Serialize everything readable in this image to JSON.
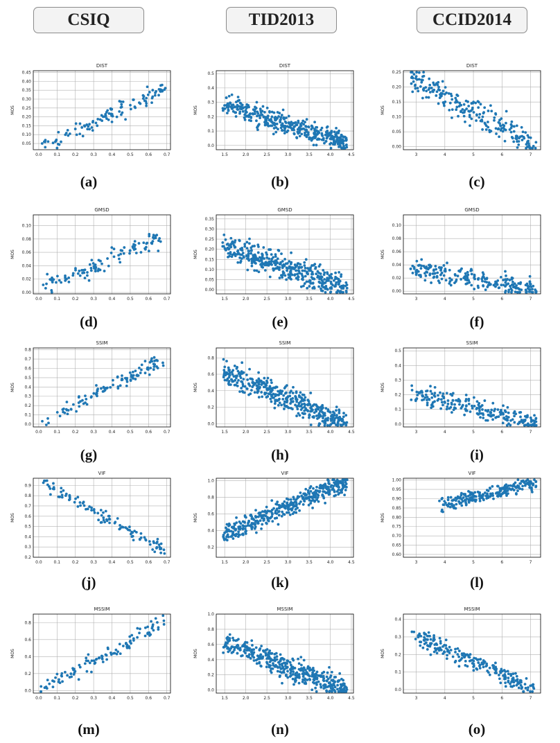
{
  "headers": [
    "CSIQ",
    "TID2013",
    "CCID2014"
  ],
  "colors": {
    "point": "#1f77b4",
    "grid": "#b0b0b0",
    "axis": "#000000"
  },
  "chart_data": [
    {
      "type": "scatter",
      "dataset": "CSIQ",
      "label": "(a)",
      "title": "DIST",
      "xlabel": "",
      "ylabel": "MOS",
      "xlim": [
        -0.03,
        0.72
      ],
      "ylim": [
        0.015,
        0.46
      ],
      "xticks": [
        0.0,
        0.1,
        0.2,
        0.3,
        0.4,
        0.5,
        0.6,
        0.7
      ],
      "xtick_labels": [
        "0.0",
        "0.1",
        "0.2",
        "0.3",
        "0.4",
        "0.5",
        "0.6",
        "0.7"
      ],
      "yticks": [
        0.05,
        0.1,
        0.15,
        0.2,
        0.25,
        0.3,
        0.35,
        0.4,
        0.45
      ],
      "ytick_labels": [
        "0.05",
        "0.10",
        "0.15",
        "0.20",
        "0.25",
        "0.30",
        "0.35",
        "0.40",
        "0.45"
      ],
      "trend": {
        "x": [
          0.01,
          0.7
        ],
        "y": [
          0.03,
          0.36
        ],
        "spread": 0.045,
        "x_range": [
          0.01,
          0.7
        ]
      },
      "n_points": 110
    },
    {
      "type": "scatter",
      "dataset": "TID2013",
      "label": "(b)",
      "title": "DIST",
      "xlabel": "",
      "ylabel": "MOS",
      "xlim": [
        1.3,
        4.55
      ],
      "ylim": [
        -0.03,
        0.52
      ],
      "xticks": [
        1.5,
        2.0,
        2.5,
        3.0,
        3.5,
        4.0,
        4.5
      ],
      "xtick_labels": [
        "1.5",
        "2.0",
        "2.5",
        "3.0",
        "3.5",
        "4.0",
        "4.5"
      ],
      "yticks": [
        0.0,
        0.1,
        0.2,
        0.3,
        0.4,
        0.5
      ],
      "ytick_labels": [
        "0.0",
        "0.1",
        "0.2",
        "0.3",
        "0.4",
        "0.5"
      ],
      "trend": {
        "x": [
          1.45,
          4.4
        ],
        "y": [
          0.28,
          0.02
        ],
        "spread": 0.07,
        "x_range": [
          1.45,
          4.4
        ]
      },
      "n_points": 420
    },
    {
      "type": "scatter",
      "dataset": "CCID2014",
      "label": "(c)",
      "title": "DIST",
      "xlabel": "",
      "ylabel": "MOS",
      "xlim": [
        2.55,
        7.35
      ],
      "ylim": [
        -0.01,
        0.255
      ],
      "xticks": [
        3,
        4,
        5,
        6,
        7
      ],
      "xtick_labels": [
        "3",
        "4",
        "5",
        "6",
        "7"
      ],
      "yticks": [
        0.0,
        0.05,
        0.1,
        0.15,
        0.2,
        0.25
      ],
      "ytick_labels": [
        "0.00",
        "0.05",
        "0.10",
        "0.15",
        "0.20",
        "0.25"
      ],
      "trend": {
        "x": [
          2.8,
          7.2
        ],
        "y": [
          0.23,
          0.0
        ],
        "spread": 0.05,
        "x_range": [
          2.8,
          7.2
        ]
      },
      "n_points": 230
    },
    {
      "type": "scatter",
      "dataset": "CSIQ",
      "label": "(d)",
      "title": "GMSD",
      "xlabel": "",
      "ylabel": "MOS",
      "xlim": [
        -0.03,
        0.72
      ],
      "ylim": [
        -0.002,
        0.116
      ],
      "xticks": [
        0.0,
        0.1,
        0.2,
        0.3,
        0.4,
        0.5,
        0.6,
        0.7
      ],
      "xtick_labels": [
        "0.0",
        "0.1",
        "0.2",
        "0.3",
        "0.4",
        "0.5",
        "0.6",
        "0.7"
      ],
      "yticks": [
        0.0,
        0.02,
        0.04,
        0.06,
        0.08,
        0.1
      ],
      "ytick_labels": [
        "0.00",
        "0.02",
        "0.04",
        "0.06",
        "0.08",
        "0.10"
      ],
      "trend": {
        "x": [
          0.01,
          0.69
        ],
        "y": [
          0.005,
          0.085
        ],
        "spread": 0.015,
        "x_range": [
          0.01,
          0.69
        ]
      },
      "n_points": 110
    },
    {
      "type": "scatter",
      "dataset": "TID2013",
      "label": "(e)",
      "title": "GMSD",
      "xlabel": "",
      "ylabel": "MOS",
      "xlim": [
        1.3,
        4.55
      ],
      "ylim": [
        -0.02,
        0.37
      ],
      "xticks": [
        1.5,
        2.0,
        2.5,
        3.0,
        3.5,
        4.0,
        4.5
      ],
      "xtick_labels": [
        "1.5",
        "2.0",
        "2.5",
        "3.0",
        "3.5",
        "4.0",
        "4.5"
      ],
      "yticks": [
        0.0,
        0.05,
        0.1,
        0.15,
        0.2,
        0.25,
        0.3,
        0.35
      ],
      "ytick_labels": [
        "0.00",
        "0.05",
        "0.10",
        "0.15",
        "0.20",
        "0.25",
        "0.30",
        "0.35"
      ],
      "trend": {
        "x": [
          1.45,
          4.4
        ],
        "y": [
          0.22,
          0.01
        ],
        "spread": 0.06,
        "x_range": [
          1.45,
          4.4
        ]
      },
      "n_points": 420
    },
    {
      "type": "scatter",
      "dataset": "CCID2014",
      "label": "(f)",
      "title": "GMSD",
      "xlabel": "",
      "ylabel": "MOS",
      "xlim": [
        2.55,
        7.35
      ],
      "ylim": [
        -0.004,
        0.116
      ],
      "xticks": [
        3,
        4,
        5,
        6,
        7
      ],
      "xtick_labels": [
        "3",
        "4",
        "5",
        "6",
        "7"
      ],
      "yticks": [
        0.0,
        0.02,
        0.04,
        0.06,
        0.08,
        0.1
      ],
      "ytick_labels": [
        "0.00",
        "0.02",
        "0.04",
        "0.06",
        "0.08",
        "0.10"
      ],
      "trend": {
        "x": [
          2.8,
          7.2
        ],
        "y": [
          0.035,
          0.002
        ],
        "spread": 0.015,
        "x_range": [
          2.8,
          7.2
        ]
      },
      "n_points": 230
    },
    {
      "type": "scatter",
      "dataset": "CSIQ",
      "label": "(g)",
      "title": "SSIM",
      "xlabel": "",
      "ylabel": "MOS",
      "xlim": [
        -0.03,
        0.72
      ],
      "ylim": [
        -0.03,
        0.82
      ],
      "xticks": [
        0.0,
        0.1,
        0.2,
        0.3,
        0.4,
        0.5,
        0.6,
        0.7
      ],
      "xtick_labels": [
        "0.0",
        "0.1",
        "0.2",
        "0.3",
        "0.4",
        "0.5",
        "0.6",
        "0.7"
      ],
      "yticks": [
        0.0,
        0.1,
        0.2,
        0.3,
        0.4,
        0.5,
        0.6,
        0.7,
        0.8
      ],
      "ytick_labels": [
        "0.0",
        "0.1",
        "0.2",
        "0.3",
        "0.4",
        "0.5",
        "0.6",
        "0.7",
        "0.8"
      ],
      "trend": {
        "x": [
          0.01,
          0.69
        ],
        "y": [
          0.01,
          0.72
        ],
        "spread": 0.08,
        "x_range": [
          0.01,
          0.69
        ]
      },
      "n_points": 110
    },
    {
      "type": "scatter",
      "dataset": "TID2013",
      "label": "(h)",
      "title": "SSIM",
      "xlabel": "",
      "ylabel": "MOS",
      "xlim": [
        1.3,
        4.55
      ],
      "ylim": [
        -0.04,
        0.92
      ],
      "xticks": [
        1.5,
        2.0,
        2.5,
        3.0,
        3.5,
        4.0,
        4.5
      ],
      "xtick_labels": [
        "1.5",
        "2.0",
        "2.5",
        "3.0",
        "3.5",
        "4.0",
        "4.5"
      ],
      "yticks": [
        0.0,
        0.2,
        0.4,
        0.6,
        0.8
      ],
      "ytick_labels": [
        "0.0",
        "0.2",
        "0.4",
        "0.6",
        "0.8"
      ],
      "trend": {
        "x": [
          1.45,
          4.4
        ],
        "y": [
          0.62,
          0.01
        ],
        "spread": 0.15,
        "x_range": [
          1.45,
          4.4
        ]
      },
      "n_points": 420
    },
    {
      "type": "scatter",
      "dataset": "CCID2014",
      "label": "(i)",
      "title": "SSIM",
      "xlabel": "",
      "ylabel": "MOS",
      "xlim": [
        2.55,
        7.35
      ],
      "ylim": [
        -0.02,
        0.52
      ],
      "xticks": [
        3,
        4,
        5,
        6,
        7
      ],
      "xtick_labels": [
        "3",
        "4",
        "5",
        "6",
        "7"
      ],
      "yticks": [
        0.0,
        0.1,
        0.2,
        0.3,
        0.4,
        0.5
      ],
      "ytick_labels": [
        "0.0",
        "0.1",
        "0.2",
        "0.3",
        "0.4",
        "0.5"
      ],
      "trend": {
        "x": [
          2.8,
          7.2
        ],
        "y": [
          0.22,
          0.0
        ],
        "spread": 0.07,
        "x_range": [
          2.8,
          7.2
        ]
      },
      "n_points": 230
    },
    {
      "type": "scatter",
      "dataset": "CSIQ",
      "label": "(j)",
      "title": "VIF",
      "xlabel": "",
      "ylabel": "MOS",
      "xlim": [
        -0.03,
        0.72
      ],
      "ylim": [
        0.2,
        0.97
      ],
      "xticks": [
        0.0,
        0.1,
        0.2,
        0.3,
        0.4,
        0.5,
        0.6,
        0.7
      ],
      "xtick_labels": [
        "0.0",
        "0.1",
        "0.2",
        "0.3",
        "0.4",
        "0.5",
        "0.6",
        "0.7"
      ],
      "yticks": [
        0.2,
        0.3,
        0.4,
        0.5,
        0.6,
        0.7,
        0.8,
        0.9
      ],
      "ytick_labels": [
        "0.2",
        "0.3",
        "0.4",
        "0.5",
        "0.6",
        "0.7",
        "0.8",
        "0.9"
      ],
      "trend": {
        "x": [
          0.01,
          0.69
        ],
        "y": [
          0.95,
          0.26
        ],
        "spread": 0.06,
        "x_range": [
          0.01,
          0.69
        ]
      },
      "n_points": 110
    },
    {
      "type": "scatter",
      "dataset": "TID2013",
      "label": "(k)",
      "title": "VIF",
      "xlabel": "",
      "ylabel": "MOS",
      "xlim": [
        1.3,
        4.55
      ],
      "ylim": [
        0.08,
        1.03
      ],
      "xticks": [
        1.5,
        2.0,
        2.5,
        3.0,
        3.5,
        4.0,
        4.5
      ],
      "xtick_labels": [
        "1.5",
        "2.0",
        "2.5",
        "3.0",
        "3.5",
        "4.0",
        "4.5"
      ],
      "yticks": [
        0.2,
        0.4,
        0.6,
        0.8,
        1.0
      ],
      "ytick_labels": [
        "0.2",
        "0.4",
        "0.6",
        "0.8",
        "1.0"
      ],
      "trend": {
        "x": [
          1.45,
          4.4
        ],
        "y": [
          0.35,
          0.99
        ],
        "spread": 0.12,
        "x_range": [
          1.45,
          4.4
        ]
      },
      "n_points": 420
    },
    {
      "type": "scatter",
      "dataset": "CCID2014",
      "label": "(l)",
      "title": "VIF",
      "xlabel": "",
      "ylabel": "MOS",
      "xlim": [
        2.55,
        7.35
      ],
      "ylim": [
        0.585,
        1.01
      ],
      "xticks": [
        3,
        4,
        5,
        6,
        7
      ],
      "xtick_labels": [
        "3",
        "4",
        "5",
        "6",
        "7"
      ],
      "yticks": [
        0.6,
        0.65,
        0.7,
        0.75,
        0.8,
        0.85,
        0.9,
        0.95,
        1.0
      ],
      "ytick_labels": [
        "0.60",
        "0.65",
        "0.70",
        "0.75",
        "0.80",
        "0.85",
        "0.90",
        "0.95",
        "1.00"
      ],
      "trend": {
        "x": [
          3.8,
          7.2
        ],
        "y": [
          0.86,
          0.99
        ],
        "spread": 0.04,
        "x_range": [
          3.8,
          7.2
        ]
      },
      "n_points": 230
    },
    {
      "type": "scatter",
      "dataset": "CSIQ",
      "label": "(m)",
      "title": "MSSIM",
      "xlabel": "",
      "ylabel": "MOS",
      "xlim": [
        -0.03,
        0.72
      ],
      "ylim": [
        -0.03,
        0.9
      ],
      "xticks": [
        0.0,
        0.1,
        0.2,
        0.3,
        0.4,
        0.5,
        0.6,
        0.7
      ],
      "xtick_labels": [
        "0.0",
        "0.1",
        "0.2",
        "0.3",
        "0.4",
        "0.5",
        "0.6",
        "0.7"
      ],
      "yticks": [
        0.0,
        0.2,
        0.4,
        0.6,
        0.8
      ],
      "ytick_labels": [
        "0.0",
        "0.2",
        "0.4",
        "0.6",
        "0.8"
      ],
      "trend": {
        "x": [
          0.01,
          0.69
        ],
        "y": [
          0.0,
          0.82
        ],
        "spread": 0.09,
        "x_range": [
          0.01,
          0.69
        ]
      },
      "n_points": 110
    },
    {
      "type": "scatter",
      "dataset": "TID2013",
      "label": "(n)",
      "title": "MSSIM",
      "xlabel": "",
      "ylabel": "MOS",
      "xlim": [
        1.3,
        4.55
      ],
      "ylim": [
        -0.04,
        1.0
      ],
      "xticks": [
        1.5,
        2.0,
        2.5,
        3.0,
        3.5,
        4.0,
        4.5
      ],
      "xtick_labels": [
        "1.5",
        "2.0",
        "2.5",
        "3.0",
        "3.5",
        "4.0",
        "4.5"
      ],
      "yticks": [
        0.0,
        0.2,
        0.4,
        0.6,
        0.8,
        1.0
      ],
      "ytick_labels": [
        "0.0",
        "0.2",
        "0.4",
        "0.6",
        "0.8",
        "1.0"
      ],
      "trend": {
        "x": [
          1.45,
          4.4
        ],
        "y": [
          0.62,
          0.01
        ],
        "spread": 0.15,
        "x_range": [
          1.45,
          4.4
        ]
      },
      "n_points": 420
    },
    {
      "type": "scatter",
      "dataset": "CCID2014",
      "label": "(o)",
      "title": "MSSIM",
      "xlabel": "",
      "ylabel": "MOS",
      "xlim": [
        2.55,
        7.35
      ],
      "ylim": [
        -0.02,
        0.43
      ],
      "xticks": [
        3,
        4,
        5,
        6,
        7
      ],
      "xtick_labels": [
        "3",
        "4",
        "5",
        "6",
        "7"
      ],
      "yticks": [
        0.0,
        0.1,
        0.2,
        0.3,
        0.4
      ],
      "ytick_labels": [
        "0.0",
        "0.1",
        "0.2",
        "0.3",
        "0.4"
      ],
      "trend": {
        "x": [
          2.8,
          7.2
        ],
        "y": [
          0.32,
          0.0
        ],
        "spread": 0.05,
        "x_range": [
          2.8,
          7.2
        ]
      },
      "n_points": 230
    }
  ]
}
